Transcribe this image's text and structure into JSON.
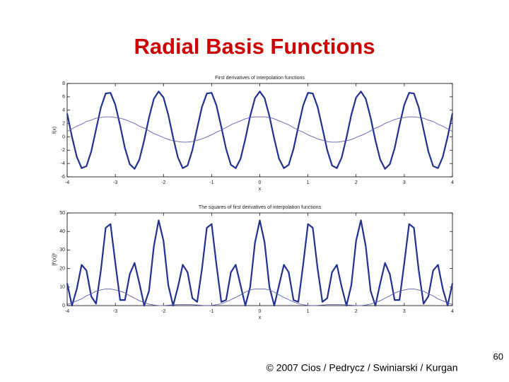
{
  "slide": {
    "title": "Radial Basis Functions",
    "footer": "© 2007 Cios / Pedrycz / Swiniarski / Kurgan",
    "page_number": 60
  },
  "chart_data": [
    {
      "type": "line",
      "title": "First derivatives of interpolation functions",
      "x_label": "x",
      "y_label": "f(x)",
      "xlim": [
        -4,
        4
      ],
      "ylim": [
        -6,
        8
      ],
      "xticks": [
        -4,
        -3,
        -2,
        -1,
        0,
        1,
        2,
        3,
        4
      ],
      "yticks": [
        -6,
        -4,
        -2,
        0,
        2,
        4,
        6,
        8
      ],
      "x": [
        -4,
        -3.9,
        -3.8,
        -3.7,
        -3.6,
        -3.5,
        -3.4,
        -3.3,
        -3.2,
        -3.1,
        -3,
        -2.9,
        -2.8,
        -2.7,
        -2.6,
        -2.5,
        -2.4,
        -2.3,
        -2.2,
        -2.1,
        -2,
        -1.9,
        -1.8,
        -1.7,
        -1.6,
        -1.5,
        -1.4,
        -1.3,
        -1.2,
        -1.1,
        -1,
        -0.9,
        -0.8,
        -0.7,
        -0.6,
        -0.5,
        -0.4,
        -0.3,
        -0.2,
        -0.1,
        0,
        0.1,
        0.2,
        0.3,
        0.4,
        0.5,
        0.6,
        0.7,
        0.8,
        0.9,
        1,
        1.1,
        1.2,
        1.3,
        1.4,
        1.5,
        1.6,
        1.7,
        1.8,
        1.9,
        2,
        2.1,
        2.2,
        2.3,
        2.4,
        2.5,
        2.6,
        2.7,
        2.8,
        2.9,
        3,
        3.1,
        3.2,
        3.3,
        3.4,
        3.5,
        3.6,
        3.7,
        3.8,
        3.9,
        4
      ],
      "series": [
        {
          "color": "#24308f",
          "values": [
            3.5,
            0.0,
            -3.0,
            -4.7,
            -4.4,
            -2.2,
            1.1,
            4.4,
            6.5,
            6.6,
            4.8,
            1.7,
            -1.7,
            -4.1,
            -4.8,
            -3.4,
            -0.5,
            2.9,
            5.7,
            6.8,
            5.9,
            3.3,
            -0.1,
            -3.1,
            -4.7,
            -4.3,
            -2.0,
            1.3,
            4.5,
            6.5,
            6.6,
            4.7,
            1.5,
            -1.8,
            -4.2,
            -4.7,
            -3.3,
            -0.3,
            3.1,
            5.8,
            6.8,
            5.8,
            3.1,
            -0.3,
            -3.3,
            -4.7,
            -4.2,
            -1.8,
            1.5,
            4.7,
            6.6,
            6.5,
            4.5,
            1.3,
            -2.0,
            -4.3,
            -4.7,
            -3.1,
            -0.1,
            3.3,
            5.9,
            6.8,
            5.7,
            2.9,
            -0.5,
            -3.4,
            -4.8,
            -4.1,
            -1.7,
            1.7,
            4.8,
            6.6,
            6.5,
            4.4,
            1.1,
            -2.2,
            -4.4,
            -4.7,
            -3.0,
            0.0,
            3.5
          ]
        },
        {
          "color": "#5b5fae",
          "values": [
            0.8,
            1.2,
            1.6,
            1.9,
            2.3,
            2.5,
            2.8,
            2.9,
            3.0,
            3.0,
            2.9,
            2.8,
            2.6,
            2.3,
            2.0,
            1.6,
            1.3,
            0.9,
            0.5,
            0.2,
            -0.1,
            -0.4,
            -0.6,
            -0.7,
            -0.8,
            -0.8,
            -0.7,
            -0.5,
            -0.3,
            0.0,
            0.3,
            0.7,
            1.0,
            1.4,
            1.8,
            2.1,
            2.4,
            2.7,
            2.9,
            3.0,
            3.0,
            3.0,
            2.9,
            2.7,
            2.4,
            2.1,
            1.8,
            1.4,
            1.0,
            0.7,
            0.3,
            0.0,
            -0.3,
            -0.5,
            -0.7,
            -0.8,
            -0.8,
            -0.7,
            -0.6,
            -0.4,
            -0.1,
            0.2,
            0.5,
            0.9,
            1.3,
            1.6,
            2.0,
            2.3,
            2.6,
            2.8,
            2.9,
            3.0,
            3.0,
            2.9,
            2.8,
            2.5,
            2.3,
            1.9,
            1.6,
            1.2,
            0.8
          ]
        }
      ]
    },
    {
      "type": "line",
      "title": "The squares of first derivatives of interpolation functions",
      "x_label": "x",
      "y_label": "[f'(x)]²",
      "xlim": [
        -4,
        4
      ],
      "ylim": [
        0,
        50
      ],
      "xticks": [
        -4,
        -3,
        -2,
        -1,
        0,
        1,
        2,
        3,
        4
      ],
      "yticks": [
        0,
        10,
        20,
        30,
        40,
        50
      ],
      "x": [
        -4,
        -3.9,
        -3.8,
        -3.7,
        -3.6,
        -3.5,
        -3.4,
        -3.3,
        -3.2,
        -3.1,
        -3,
        -2.9,
        -2.8,
        -2.7,
        -2.6,
        -2.5,
        -2.4,
        -2.3,
        -2.2,
        -2.1,
        -2,
        -1.9,
        -1.8,
        -1.7,
        -1.6,
        -1.5,
        -1.4,
        -1.3,
        -1.2,
        -1.1,
        -1,
        -0.9,
        -0.8,
        -0.7,
        -0.6,
        -0.5,
        -0.4,
        -0.3,
        -0.2,
        -0.1,
        0,
        0.1,
        0.2,
        0.3,
        0.4,
        0.5,
        0.6,
        0.7,
        0.8,
        0.9,
        1,
        1.1,
        1.2,
        1.3,
        1.4,
        1.5,
        1.6,
        1.7,
        1.8,
        1.9,
        2,
        2.1,
        2.2,
        2.3,
        2.4,
        2.5,
        2.6,
        2.7,
        2.8,
        2.9,
        3,
        3.1,
        3.2,
        3.3,
        3.4,
        3.5,
        3.6,
        3.7,
        3.8,
        3.9,
        4
      ],
      "series": [
        {
          "color": "#24308f",
          "values": [
            12,
            0,
            9,
            22,
            19,
            5,
            1,
            19,
            42,
            44,
            23,
            3,
            3,
            17,
            23,
            12,
            0,
            8,
            32,
            46,
            35,
            11,
            0,
            10,
            22,
            18,
            4,
            2,
            20,
            42,
            44,
            22,
            2,
            3,
            18,
            22,
            11,
            0,
            10,
            34,
            46,
            34,
            10,
            0,
            11,
            22,
            18,
            3,
            2,
            22,
            44,
            42,
            20,
            2,
            4,
            18,
            22,
            10,
            0,
            11,
            35,
            46,
            32,
            8,
            0,
            12,
            23,
            17,
            3,
            3,
            23,
            44,
            42,
            19,
            1,
            5,
            19,
            22,
            9,
            0,
            12
          ]
        },
        {
          "color": "#5b5fae",
          "values": [
            0.6,
            1.4,
            2.6,
            3.6,
            5.3,
            6.3,
            7.8,
            8.4,
            9.0,
            9.0,
            8.4,
            7.8,
            6.8,
            5.3,
            4.0,
            2.6,
            1.7,
            0.8,
            0.3,
            0.0,
            0.0,
            0.2,
            0.4,
            0.5,
            0.6,
            0.6,
            0.5,
            0.3,
            0.1,
            0.0,
            0.1,
            0.5,
            1.0,
            2.0,
            3.2,
            4.4,
            5.8,
            7.3,
            8.4,
            9.0,
            9.0,
            9.0,
            8.4,
            7.3,
            5.8,
            4.4,
            3.2,
            2.0,
            1.0,
            0.5,
            0.1,
            0.0,
            0.1,
            0.3,
            0.5,
            0.6,
            0.6,
            0.5,
            0.4,
            0.2,
            0.0,
            0.0,
            0.3,
            0.8,
            1.7,
            2.6,
            4.0,
            5.3,
            6.8,
            7.8,
            8.4,
            9.0,
            9.0,
            8.4,
            7.8,
            6.3,
            5.3,
            3.6,
            2.6,
            1.4,
            0.6
          ]
        }
      ]
    }
  ]
}
